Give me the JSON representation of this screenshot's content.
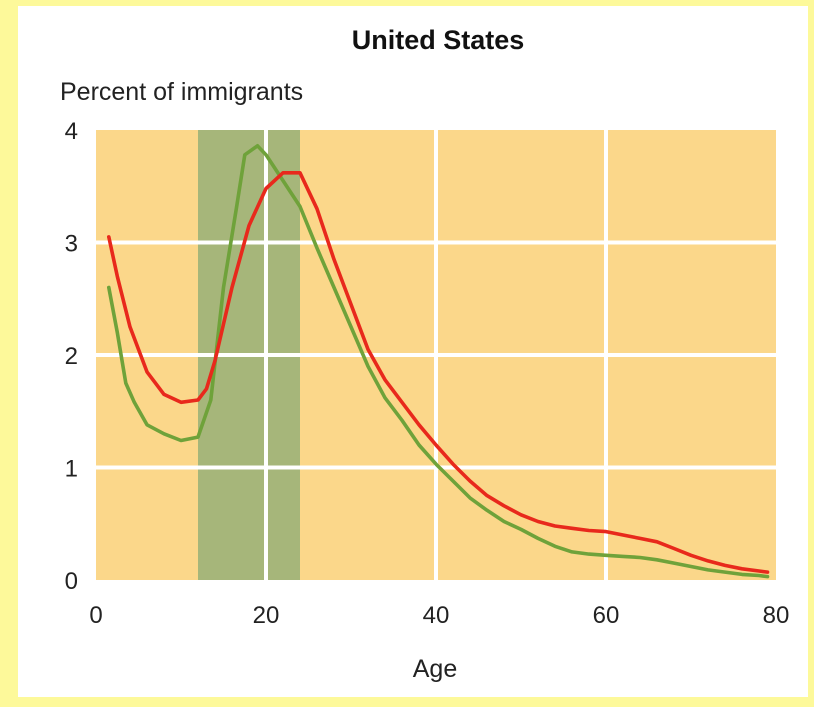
{
  "chart_data": {
    "type": "line",
    "title": "United States",
    "ylabel": "Percent of immigrants",
    "xlabel": "Age",
    "xlim": [
      0,
      80
    ],
    "ylim": [
      0,
      4
    ],
    "xticks": [
      "0",
      "20",
      "40",
      "60",
      "80"
    ],
    "yticks": [
      "0",
      "1",
      "2",
      "3",
      "4"
    ],
    "grid": true,
    "highlight_band": {
      "x_start": 12,
      "x_end": 24,
      "color": "#a6b67a"
    },
    "colors": {
      "plot_background": "#fbd78a",
      "grid": "#ffffff",
      "border": "#fdf99a",
      "series_a": "#e8291c",
      "series_b": "#6fa23a"
    },
    "series": [
      {
        "color": "#e8291c",
        "points": [
          [
            1.5,
            3.05
          ],
          [
            2.5,
            2.7
          ],
          [
            4,
            2.25
          ],
          [
            6,
            1.85
          ],
          [
            8,
            1.65
          ],
          [
            10,
            1.58
          ],
          [
            12,
            1.6
          ],
          [
            13,
            1.7
          ],
          [
            14,
            1.95
          ],
          [
            16,
            2.6
          ],
          [
            18,
            3.15
          ],
          [
            20,
            3.48
          ],
          [
            22,
            3.62
          ],
          [
            24,
            3.62
          ],
          [
            26,
            3.3
          ],
          [
            28,
            2.85
          ],
          [
            30,
            2.45
          ],
          [
            32,
            2.05
          ],
          [
            34,
            1.78
          ],
          [
            36,
            1.58
          ],
          [
            38,
            1.38
          ],
          [
            40,
            1.2
          ],
          [
            42,
            1.03
          ],
          [
            44,
            0.88
          ],
          [
            46,
            0.75
          ],
          [
            48,
            0.66
          ],
          [
            50,
            0.58
          ],
          [
            52,
            0.52
          ],
          [
            54,
            0.48
          ],
          [
            56,
            0.46
          ],
          [
            58,
            0.44
          ],
          [
            60,
            0.43
          ],
          [
            62,
            0.4
          ],
          [
            64,
            0.37
          ],
          [
            66,
            0.34
          ],
          [
            68,
            0.28
          ],
          [
            70,
            0.22
          ],
          [
            72,
            0.17
          ],
          [
            74,
            0.13
          ],
          [
            76,
            0.1
          ],
          [
            78,
            0.08
          ],
          [
            79,
            0.07
          ]
        ]
      },
      {
        "color": "#6fa23a",
        "points": [
          [
            1.5,
            2.6
          ],
          [
            2.5,
            2.2
          ],
          [
            3.5,
            1.75
          ],
          [
            4.5,
            1.58
          ],
          [
            6,
            1.38
          ],
          [
            8,
            1.3
          ],
          [
            10,
            1.24
          ],
          [
            12,
            1.27
          ],
          [
            13.5,
            1.6
          ],
          [
            15,
            2.6
          ],
          [
            16.5,
            3.3
          ],
          [
            17.5,
            3.78
          ],
          [
            19,
            3.86
          ],
          [
            20,
            3.78
          ],
          [
            22,
            3.55
          ],
          [
            24,
            3.32
          ],
          [
            26,
            2.95
          ],
          [
            28,
            2.6
          ],
          [
            30,
            2.25
          ],
          [
            32,
            1.9
          ],
          [
            34,
            1.62
          ],
          [
            36,
            1.42
          ],
          [
            38,
            1.2
          ],
          [
            40,
            1.03
          ],
          [
            42,
            0.88
          ],
          [
            44,
            0.73
          ],
          [
            46,
            0.62
          ],
          [
            48,
            0.52
          ],
          [
            50,
            0.45
          ],
          [
            52,
            0.37
          ],
          [
            54,
            0.3
          ],
          [
            56,
            0.25
          ],
          [
            58,
            0.23
          ],
          [
            60,
            0.22
          ],
          [
            62,
            0.21
          ],
          [
            64,
            0.2
          ],
          [
            66,
            0.18
          ],
          [
            68,
            0.15
          ],
          [
            70,
            0.12
          ],
          [
            72,
            0.09
          ],
          [
            74,
            0.07
          ],
          [
            76,
            0.05
          ],
          [
            78,
            0.04
          ],
          [
            79,
            0.03
          ]
        ]
      }
    ]
  }
}
